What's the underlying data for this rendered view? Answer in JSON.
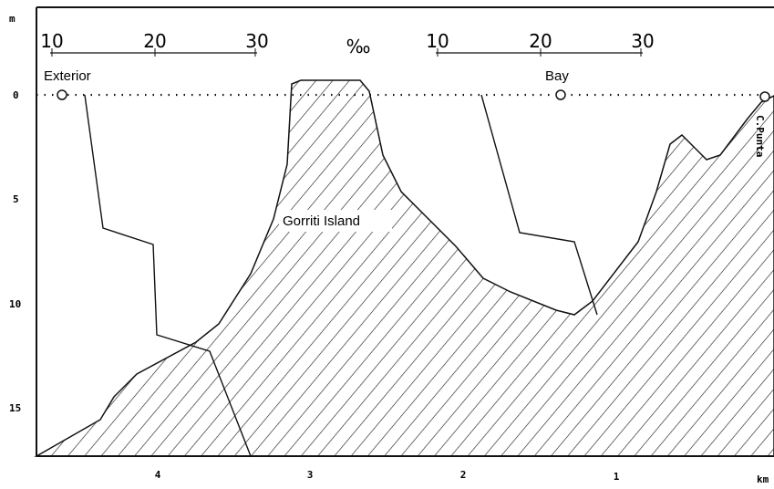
{
  "axes": {
    "y_label": "m",
    "y_ticks": [
      "0",
      "5",
      "10",
      "15"
    ],
    "x_label": "km",
    "x_ticks": [
      "4",
      "3",
      "2",
      "1"
    ]
  },
  "scales": {
    "unit": "‰",
    "left": [
      "10",
      "20",
      "30"
    ],
    "right": [
      "10",
      "20",
      "30"
    ]
  },
  "labels": {
    "exterior": "Exterior",
    "bay": "Bay",
    "island": "Gorriti Island",
    "cape": "C.Punta"
  }
}
